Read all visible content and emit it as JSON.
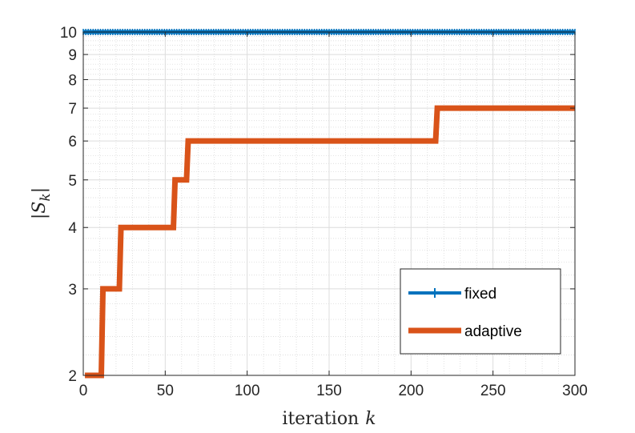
{
  "chart_data": {
    "type": "line",
    "xlabel": "iteration",
    "xlabel_var": "k",
    "ylabel": "|S_k|",
    "xlim": [
      0,
      300
    ],
    "ylim": [
      2,
      10
    ],
    "y_scale": "log",
    "grid": true,
    "minor_grid": true,
    "x_ticks": [
      0,
      50,
      100,
      150,
      200,
      250,
      300
    ],
    "x_tick_labels": [
      "0",
      "50",
      "100",
      "150",
      "200",
      "250",
      "300"
    ],
    "y_ticks": [
      2,
      3,
      4,
      5,
      6,
      7,
      8,
      9,
      10
    ],
    "y_tick_labels": [
      "2",
      "3",
      "4",
      "5",
      "6",
      "7",
      "8",
      "9",
      "10"
    ],
    "legend_position": "bottom-right",
    "series": [
      {
        "name": "fixed",
        "color": "#0072BD",
        "marker": "+",
        "x": [
          0,
          300
        ],
        "y": [
          10,
          10
        ]
      },
      {
        "name": "adaptive",
        "color": "#D95319",
        "step": true,
        "x": [
          1,
          11,
          12,
          22,
          23,
          55,
          56,
          63,
          64,
          215,
          216,
          300
        ],
        "y": [
          2,
          2,
          3,
          3,
          4,
          4,
          5,
          5,
          6,
          6,
          7,
          7
        ]
      }
    ]
  }
}
